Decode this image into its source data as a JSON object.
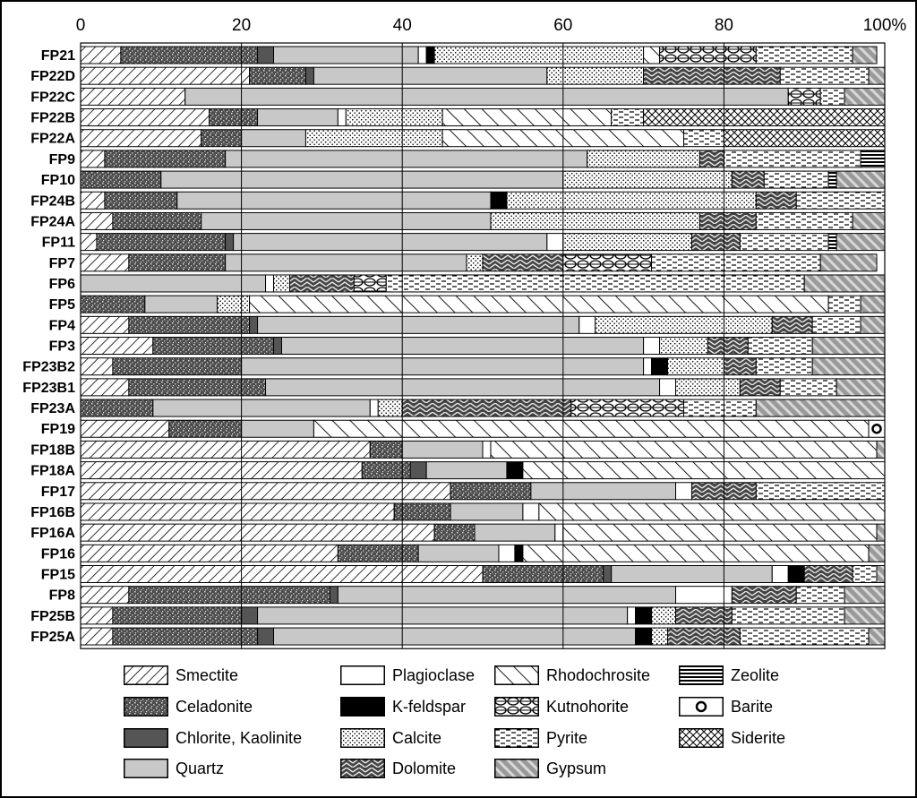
{
  "chart_data": {
    "type": "bar",
    "orientation": "horizontal",
    "stacked": true,
    "title": "",
    "xlabel": "",
    "ylabel": "",
    "xlim": [
      0,
      100
    ],
    "x_ticks": [
      "0",
      "20",
      "40",
      "60",
      "80",
      "100%"
    ],
    "x_tick_values": [
      0,
      20,
      40,
      60,
      80,
      100
    ],
    "grid": true,
    "legend_position": "bottom",
    "categories": [
      "FP21",
      "FP22D",
      "FP22C",
      "FP22B",
      "FP22A",
      "FP9",
      "FP10",
      "FP24B",
      "FP24A",
      "FP11",
      "FP7",
      "FP6",
      "FP5",
      "FP4",
      "FP3",
      "FP23B2",
      "FP23B1",
      "FP23A",
      "FP19",
      "FP18B",
      "FP18A",
      "FP17",
      "FP16B",
      "FP16A",
      "FP16",
      "FP15",
      "FP8",
      "FP25B",
      "FP25A"
    ],
    "series": [
      {
        "name": "Smectite",
        "pattern": "smectite",
        "values": [
          5,
          21,
          13,
          16,
          15,
          3,
          0,
          3,
          4,
          2,
          6,
          0,
          0,
          6,
          9,
          4,
          6,
          0,
          11,
          36,
          35,
          46,
          39,
          44,
          32,
          50,
          6,
          4,
          4
        ]
      },
      {
        "name": "Celadonite",
        "pattern": "celadonite",
        "values": [
          17,
          7,
          0,
          6,
          5,
          15,
          10,
          9,
          11,
          16,
          12,
          0,
          8,
          15,
          15,
          16,
          17,
          9,
          9,
          4,
          6,
          10,
          7,
          5,
          10,
          15,
          25,
          16,
          18
        ]
      },
      {
        "name": "Chlorite, Kaolinite",
        "pattern": "chlorite",
        "values": [
          2,
          1,
          0,
          0,
          0,
          0,
          0,
          0,
          0,
          1,
          0,
          0,
          0,
          1,
          1,
          0,
          0,
          0,
          0,
          0,
          2,
          0,
          0,
          0,
          0,
          1,
          1,
          2,
          2
        ]
      },
      {
        "name": "Quartz",
        "pattern": "quartz",
        "values": [
          18,
          29,
          75,
          10,
          8,
          45,
          50,
          39,
          36,
          39,
          30,
          23,
          9,
          40,
          45,
          50,
          49,
          27,
          9,
          10,
          10,
          18,
          9,
          10,
          10,
          20,
          42,
          46,
          45
        ]
      },
      {
        "name": "Plagioclase",
        "pattern": "plagioclase",
        "values": [
          1,
          0,
          0,
          1,
          0,
          0,
          0,
          0,
          0,
          2,
          0,
          1,
          0,
          2,
          2,
          1,
          2,
          1,
          0,
          1,
          0,
          2,
          2,
          1,
          2,
          2,
          7,
          1,
          0
        ]
      },
      {
        "name": "K-feldspar",
        "pattern": "kfeldspar",
        "values": [
          1,
          0,
          0,
          0,
          0,
          0,
          0,
          2,
          0,
          0,
          0,
          0,
          0,
          0,
          0,
          2,
          0,
          0,
          0,
          0,
          2,
          0,
          0,
          0,
          1,
          2,
          0,
          2,
          2
        ]
      },
      {
        "name": "Calcite",
        "pattern": "calcite",
        "values": [
          26,
          12,
          0,
          12,
          17,
          14,
          21,
          31,
          26,
          16,
          2,
          2,
          4,
          22,
          6,
          7,
          8,
          3,
          0,
          0,
          0,
          0,
          0,
          0,
          0,
          0,
          0,
          3,
          2
        ]
      },
      {
        "name": "Rhodochrosite",
        "pattern": "rhodochrosite",
        "values": [
          2,
          0,
          0,
          21,
          30,
          0,
          0,
          0,
          0,
          0,
          0,
          0,
          72,
          0,
          0,
          0,
          0,
          0,
          69,
          48,
          45,
          0,
          43,
          39,
          43,
          0,
          0,
          0,
          0
        ]
      },
      {
        "name": "Dolomite",
        "pattern": "dolomite",
        "values": [
          0,
          17,
          0,
          0,
          0,
          3,
          4,
          5,
          7,
          6,
          10,
          8,
          0,
          5,
          5,
          4,
          5,
          21,
          0,
          0,
          0,
          8,
          0,
          0,
          0,
          6,
          8,
          7,
          9
        ]
      },
      {
        "name": "Kutnohorite",
        "pattern": "kutnohorite",
        "values": [
          12,
          0,
          4,
          0,
          0,
          0,
          0,
          0,
          0,
          0,
          11,
          4,
          0,
          0,
          0,
          0,
          0,
          14,
          0,
          0,
          0,
          0,
          0,
          0,
          0,
          0,
          0,
          0,
          0
        ]
      },
      {
        "name": "Pyrite",
        "pattern": "pyrite",
        "values": [
          12,
          11,
          3,
          4,
          5,
          17,
          8,
          11,
          12,
          11,
          21,
          52,
          4,
          6,
          8,
          7,
          7,
          9,
          0,
          0,
          0,
          16,
          0,
          0,
          0,
          3,
          6,
          14,
          16
        ]
      },
      {
        "name": "Zeolite",
        "pattern": "zeolite",
        "values": [
          0,
          0,
          0,
          0,
          0,
          3,
          1,
          0,
          0,
          1,
          0,
          0,
          0,
          0,
          0,
          0,
          0,
          0,
          0,
          0,
          0,
          0,
          0,
          0,
          0,
          0,
          0,
          0,
          0
        ]
      },
      {
        "name": "Barite",
        "pattern": "barite",
        "values": [
          0,
          0,
          0,
          0,
          0,
          0,
          0,
          0,
          0,
          0,
          0,
          0,
          0,
          0,
          0,
          0,
          0,
          0,
          2,
          0,
          0,
          0,
          0,
          0,
          0,
          0,
          0,
          0,
          0
        ]
      },
      {
        "name": "Siderite",
        "pattern": "siderite",
        "values": [
          0,
          0,
          0,
          30,
          20,
          0,
          0,
          0,
          0,
          0,
          0,
          0,
          0,
          0,
          0,
          0,
          0,
          0,
          0,
          0,
          0,
          0,
          0,
          0,
          0,
          0,
          0,
          0,
          0
        ]
      },
      {
        "name": "Gypsum",
        "pattern": "gypsum",
        "values": [
          3,
          2,
          5,
          0,
          0,
          0,
          6,
          0,
          4,
          6,
          7,
          10,
          3,
          3,
          9,
          9,
          6,
          16,
          0,
          1,
          0,
          0,
          0,
          1,
          2,
          1,
          5,
          5,
          2
        ]
      }
    ]
  },
  "legend": {
    "columns": [
      [
        "Smectite",
        "Celadonite",
        "Chlorite, Kaolinite",
        "Quartz"
      ],
      [
        "Plagioclase",
        "K-feldspar",
        "Calcite",
        "Dolomite"
      ],
      [
        "Rhodochrosite",
        "Kutnohorite",
        "Pyrite",
        "Gypsum"
      ],
      [
        "Zeolite",
        "Barite",
        "Siderite"
      ]
    ]
  }
}
